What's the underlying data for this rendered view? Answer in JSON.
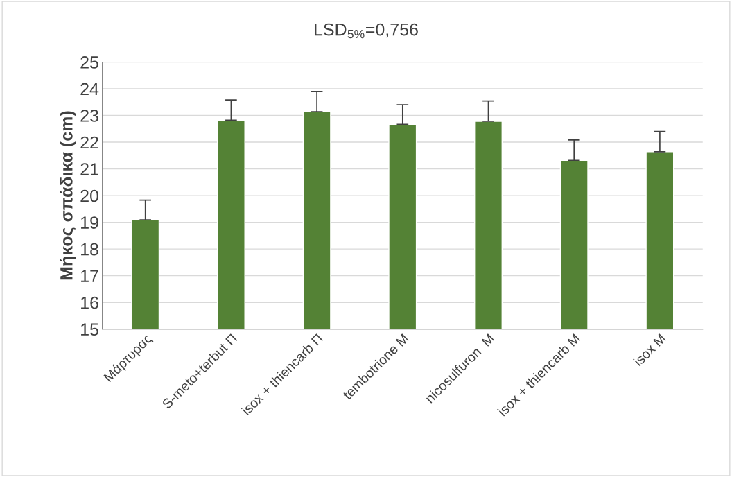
{
  "chart_data": {
    "type": "bar",
    "title": "LSD$_{5%}$=0,756",
    "ylabel": "Μήκος σπάδικα (cm)",
    "categories": [
      "Μάρτυρας",
      "S-meto+terbut Π",
      "isox + thiencarb Π",
      "tembotrione M",
      "nicosulfuron  M",
      "isox + thiencarb M",
      "isox M"
    ],
    "values": [
      19.09,
      22.82,
      23.14,
      22.67,
      22.78,
      21.32,
      21.64
    ],
    "errors": [
      [
        19.09,
        19.83
      ],
      [
        22.82,
        23.58
      ],
      [
        23.14,
        23.9
      ],
      [
        22.67,
        23.4
      ],
      [
        22.78,
        23.54
      ],
      [
        21.32,
        22.08
      ],
      [
        21.64,
        22.4
      ]
    ],
    "color": "#548235",
    "ylim": [
      15,
      25
    ],
    "yticks": [
      15,
      16,
      17,
      18,
      19,
      20,
      21,
      22,
      23,
      24,
      25
    ],
    "grid": "y"
  }
}
